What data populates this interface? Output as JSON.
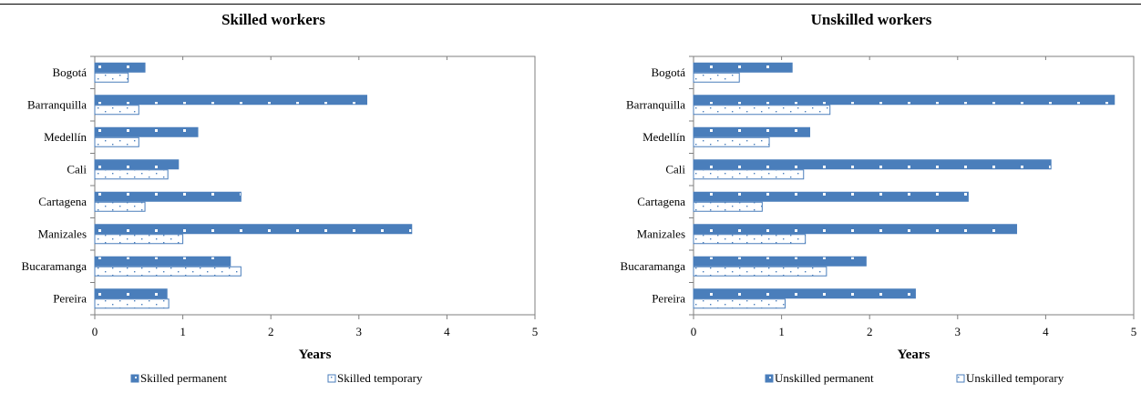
{
  "chart_data": [
    {
      "type": "bar",
      "orientation": "horizontal",
      "title": "Skilled workers",
      "xlabel": "Years",
      "ylabel": "",
      "xlim": [
        0,
        5
      ],
      "ticks": [
        "0",
        "1",
        "2",
        "3",
        "4",
        "5"
      ],
      "grid": false,
      "legend_position": "bottom",
      "categories": [
        "Bogotá",
        "Barranquilla",
        "Medellín",
        "Cali",
        "Cartagena",
        "Manizales",
        "Bucaramanga",
        "Pereira"
      ],
      "series": [
        {
          "name": "Skilled permanent",
          "values": [
            0.57,
            3.09,
            1.17,
            0.95,
            1.66,
            3.6,
            1.54,
            0.82
          ],
          "color": "#4a7ebb"
        },
        {
          "name": "Skilled temporary",
          "values": [
            0.38,
            0.5,
            0.5,
            0.83,
            0.57,
            1.0,
            1.66,
            0.84
          ],
          "color": "#4a7ebb"
        }
      ]
    },
    {
      "type": "bar",
      "orientation": "horizontal",
      "title": "Unskilled workers",
      "xlabel": "Years",
      "ylabel": "",
      "xlim": [
        0,
        5
      ],
      "ticks": [
        "0",
        "1",
        "2",
        "3",
        "4",
        "5"
      ],
      "grid": false,
      "legend_position": "bottom",
      "categories": [
        "Bogotá",
        "Barranquilla",
        "Medellín",
        "Cali",
        "Cartagena",
        "Manizales",
        "Bucaramanga",
        "Pereira"
      ],
      "series": [
        {
          "name": "Unskilled permanent",
          "values": [
            1.12,
            4.78,
            1.32,
            4.06,
            3.12,
            3.67,
            1.96,
            2.52
          ],
          "color": "#4a7ebb"
        },
        {
          "name": "Unskilled temporary",
          "values": [
            0.52,
            1.55,
            0.86,
            1.25,
            0.78,
            1.27,
            1.51,
            1.04
          ],
          "color": "#4a7ebb"
        }
      ]
    }
  ]
}
